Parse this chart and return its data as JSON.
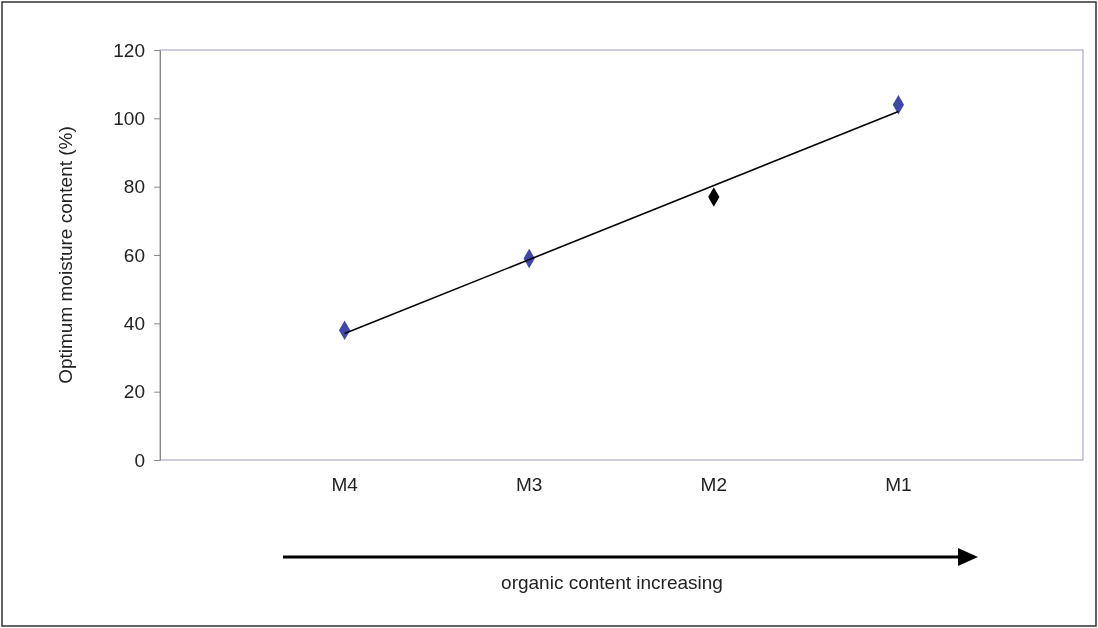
{
  "chart_data": {
    "type": "scatter",
    "ylabel": "Optimum moisture content (%)",
    "categories": [
      "M4",
      "M3",
      "M2",
      "M1"
    ],
    "series": [
      {
        "values": [
          38,
          59,
          77,
          104
        ],
        "colors": [
          "#3f48a8",
          "#3f48a8",
          "#000000",
          "#3f48a8"
        ],
        "marker": "diamond"
      },
      {
        "type": "line",
        "x": [
          "M4",
          "M1"
        ],
        "values": [
          37,
          102
        ],
        "color": "#000000"
      }
    ],
    "ylim": [
      0,
      120
    ],
    "yticks": [
      0,
      20,
      40,
      60,
      80,
      100,
      120
    ],
    "grid": false,
    "annotations": [
      "organic content increasing"
    ]
  }
}
